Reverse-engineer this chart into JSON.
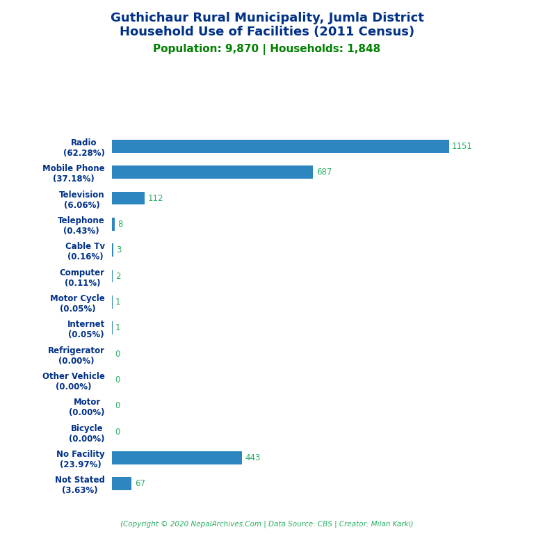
{
  "title_line1": "Guthichaur Rural Municipality, Jumla District",
  "title_line2": "Household Use of Facilities (2011 Census)",
  "subtitle": "Population: 9,870 | Households: 1,848",
  "copyright": "(Copyright © 2020 NepalArchives.Com | Data Source: CBS | Creator: Milan Karki)",
  "categories": [
    "Not Stated\n(3.63%)",
    "No Facility\n(23.97%)",
    "Bicycle\n(0.00%)",
    "Motor\n(0.00%)",
    "Other Vehicle\n(0.00%)",
    "Refrigerator\n(0.00%)",
    "Internet\n(0.05%)",
    "Motor Cycle\n(0.05%)",
    "Computer\n(0.11%)",
    "Cable Tv\n(0.16%)",
    "Telephone\n(0.43%)",
    "Television\n(6.06%)",
    "Mobile Phone\n(37.18%)",
    "Radio\n(62.28%)"
  ],
  "values": [
    67,
    443,
    0,
    0,
    0,
    0,
    1,
    1,
    2,
    3,
    8,
    112,
    687,
    1151
  ],
  "bar_color": "#2e86c1",
  "title_color": "#003087",
  "subtitle_color": "#008000",
  "value_color": "#27ae60",
  "copyright_color": "#27ae60",
  "background_color": "#ffffff",
  "xlim": [
    0,
    1350
  ],
  "bar_height": 0.5
}
